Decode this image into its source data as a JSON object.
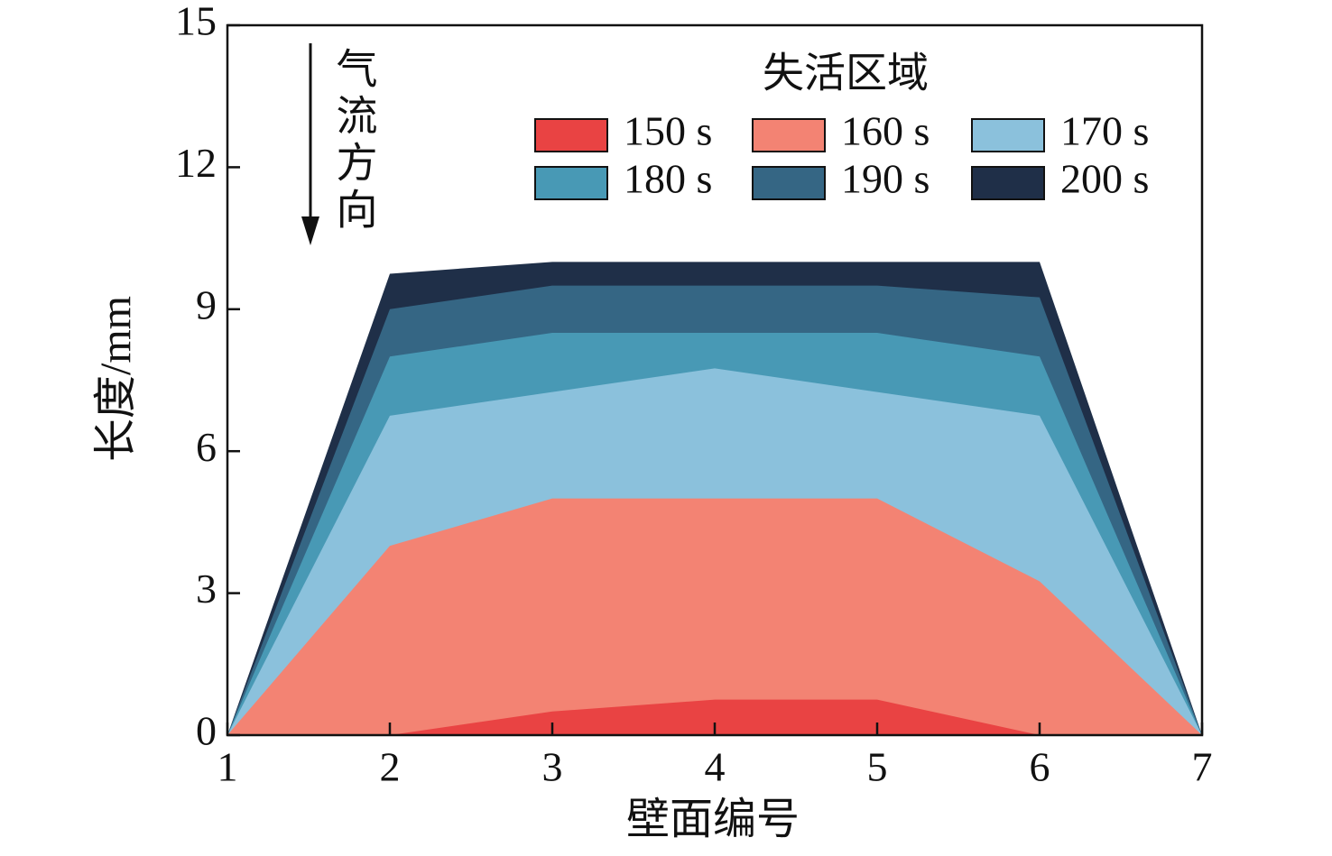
{
  "chart_data": {
    "type": "area",
    "x_label": "壁面编号",
    "y_label": "长度/mm",
    "legend_title": "失活区域",
    "annotation": "气流方向",
    "x": [
      1,
      2,
      3,
      4,
      5,
      6,
      7
    ],
    "series": [
      {
        "name": "150 s",
        "color": "#e94343",
        "values": [
          0,
          0,
          0.5,
          0.75,
          0.75,
          0,
          0
        ]
      },
      {
        "name": "160 s",
        "color": "#f38373",
        "values": [
          0,
          4,
          5,
          5,
          5,
          3.25,
          0
        ]
      },
      {
        "name": "170 s",
        "color": "#8bc1dc",
        "values": [
          0,
          6.75,
          7.25,
          7.75,
          7.25,
          6.75,
          0
        ]
      },
      {
        "name": "180 s",
        "color": "#4899b5",
        "values": [
          0,
          8,
          8.5,
          8.5,
          8.5,
          8,
          0
        ]
      },
      {
        "name": "190 s",
        "color": "#356684",
        "values": [
          0,
          9,
          9.5,
          9.5,
          9.5,
          9.25,
          0
        ]
      },
      {
        "name": "200 s",
        "color": "#1f2f48",
        "values": [
          0,
          9.75,
          10,
          10,
          10,
          10,
          0
        ]
      }
    ],
    "xlim": [
      1,
      7
    ],
    "xticks": [
      1,
      2,
      3,
      4,
      5,
      6,
      7
    ],
    "ylim": [
      0,
      15
    ],
    "yticks": [
      0,
      3,
      6,
      9,
      12,
      15
    ]
  }
}
